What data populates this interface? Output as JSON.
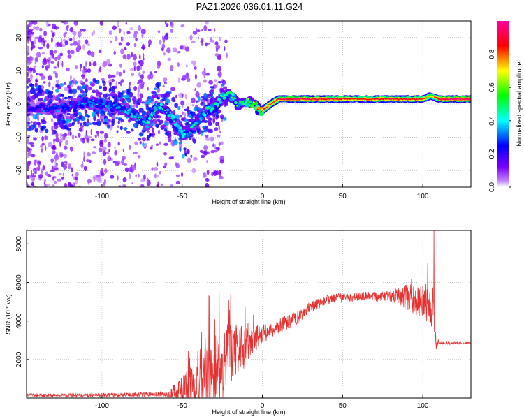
{
  "title": "PAZ1.2026.036.01.11.G24",
  "colors": {
    "snr_line": "#e63232",
    "frame": "#000000"
  },
  "chart_data": [
    {
      "type": "heatmap",
      "name": "spectrogram",
      "xlabel": "Height of straight line (km)",
      "ylabel": "Frequency (Hz)",
      "xlim": [
        -147,
        130
      ],
      "ylim": [
        -25,
        25
      ],
      "xticks": [
        -100,
        -50,
        0,
        50,
        100
      ],
      "yticks": [
        -20,
        -10,
        0,
        10,
        20
      ],
      "colorbar": {
        "label": "Normalized spectral amplitude",
        "range": [
          0,
          1
        ],
        "ticks": [
          0.0,
          0.2,
          0.4,
          0.6,
          0.8
        ],
        "tick_labels": [
          "0.0",
          "0.2",
          "0.4",
          "0.6",
          "0.8"
        ],
        "colormap": "rainbow (white-violet-blue-cyan-green-yellow-red-magenta)"
      },
      "ridge": {
        "x": [
          -143,
          -130,
          -120,
          -110,
          -100,
          -90,
          -85,
          -78,
          -72,
          -65,
          -60,
          -55,
          -50,
          -45,
          -40,
          -35,
          -30,
          -25,
          -20,
          -15,
          -10,
          -5,
          -2,
          0,
          5,
          10,
          20,
          40,
          60,
          80,
          100,
          105,
          110,
          120,
          130
        ],
        "freq": [
          -1,
          -1.5,
          -0.5,
          0.5,
          0,
          -1,
          -1.5,
          -4,
          -6,
          0,
          -2,
          -5,
          -9,
          -8,
          -5,
          -2,
          -1,
          2,
          3,
          0,
          1,
          0,
          -2,
          -2,
          0,
          1.5,
          1.5,
          1.5,
          1.5,
          1.5,
          1.5,
          2.5,
          1.5,
          1.5,
          1.5
        ],
        "amplitude": [
          0.25,
          0.3,
          0.3,
          0.35,
          0.35,
          0.4,
          0.4,
          0.4,
          0.45,
          0.45,
          0.45,
          0.45,
          0.5,
          0.45,
          0.45,
          0.5,
          0.5,
          0.5,
          0.55,
          0.5,
          0.6,
          0.7,
          0.8,
          0.85,
          0.85,
          0.9,
          0.95,
          0.9,
          0.85,
          0.9,
          0.85,
          0.7,
          0.9,
          0.95,
          0.95
        ]
      },
      "grid": true
    },
    {
      "type": "line",
      "name": "snr",
      "xlabel": "Height of straight line (km)",
      "ylabel": "SNR (10 * v/v)",
      "xlim": [
        -147,
        130
      ],
      "ylim": [
        0,
        8700
      ],
      "xticks": [
        -100,
        -50,
        0,
        50,
        100
      ],
      "yticks": [
        2000,
        4000,
        6000,
        8000
      ],
      "trend": {
        "x": [
          -147,
          -100,
          -60,
          -50,
          -40,
          -30,
          -20,
          -10,
          0,
          10,
          20,
          30,
          40,
          50,
          60,
          70,
          80,
          90,
          100,
          107,
          108,
          110,
          120,
          130
        ],
        "snr": [
          150,
          150,
          200,
          400,
          800,
          1500,
          2300,
          2800,
          3300,
          3700,
          4100,
          4700,
          5100,
          5200,
          5250,
          5250,
          5300,
          5200,
          5000,
          4800,
          3000,
          2850,
          2850,
          2850
        ]
      },
      "noise": {
        "x": [
          -147,
          -60,
          -50,
          -40,
          -30,
          -20,
          -10,
          0,
          20,
          40,
          60,
          80,
          90,
          100,
          107,
          110,
          130
        ],
        "amplitude": [
          80,
          120,
          700,
          1600,
          2000,
          1600,
          900,
          500,
          350,
          250,
          250,
          300,
          700,
          900,
          1200,
          60,
          60
        ]
      },
      "peaks": [
        {
          "x": -33,
          "snr": 5300
        },
        {
          "x": -27,
          "snr": 5500
        },
        {
          "x": -21,
          "snr": 5100
        },
        {
          "x": 93,
          "snr": 6200
        },
        {
          "x": 103,
          "snr": 7000
        },
        {
          "x": 107,
          "snr": 8700
        }
      ],
      "grid": true
    }
  ]
}
